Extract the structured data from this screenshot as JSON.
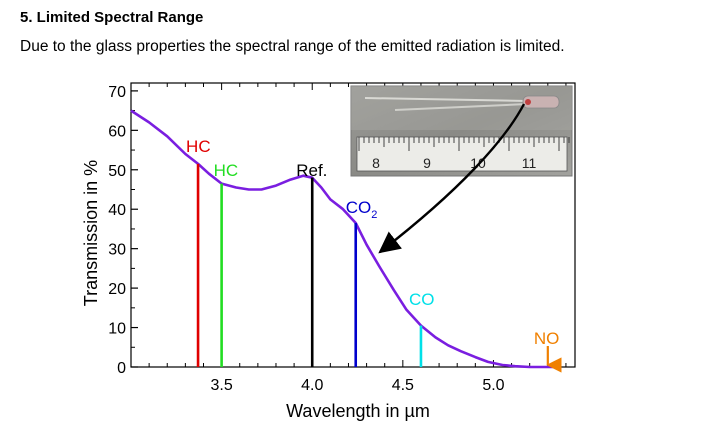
{
  "section": {
    "title": "5. Limited Spectral Range",
    "description": "Due to the glass properties the spectral range of the emitted radiation is limited."
  },
  "chart_data": {
    "type": "line",
    "title": "",
    "xlabel": "Wavelength in µm",
    "ylabel": "Transmission in %",
    "xlim": [
      3.0,
      5.45
    ],
    "ylim": [
      0,
      72
    ],
    "xticks": [
      3.5,
      4.0,
      4.5,
      5.0
    ],
    "yticks": [
      0,
      10,
      20,
      30,
      40,
      50,
      60,
      70
    ],
    "series": [
      {
        "color": "#7a1ee0",
        "x": [
          3.0,
          3.1,
          3.2,
          3.3,
          3.37,
          3.43,
          3.5,
          3.58,
          3.65,
          3.72,
          3.8,
          3.88,
          3.95,
          4.0,
          4.05,
          4.1,
          4.17,
          4.24,
          4.3,
          4.37,
          4.45,
          4.52,
          4.6,
          4.68,
          4.75,
          4.82,
          4.9,
          4.97,
          5.05,
          5.12,
          5.2,
          5.28,
          5.33
        ],
        "y": [
          65,
          62,
          58.5,
          54,
          51.5,
          49,
          46.5,
          45.5,
          45,
          45,
          46,
          47.5,
          48.5,
          48,
          45.5,
          42.5,
          40,
          36.5,
          31,
          25.5,
          19.5,
          14.5,
          10.5,
          7.5,
          5.5,
          4,
          2.5,
          1.3,
          0.5,
          0.2,
          0,
          0,
          0
        ]
      }
    ],
    "markers": [
      {
        "label": "HC",
        "x": 3.37,
        "y": 51.5,
        "color": "#e00000"
      },
      {
        "label": "HC",
        "x": 3.5,
        "y": 46.5,
        "color": "#22dd22"
      },
      {
        "label": "Ref.",
        "x": 4.0,
        "y": 48,
        "color": "#000000"
      },
      {
        "label": "CO2",
        "x": 4.24,
        "y": 36.5,
        "color": "#0000cc"
      },
      {
        "label": "CO",
        "x": 4.6,
        "y": 10.5,
        "color": "#00e0e8"
      },
      {
        "label": "NO",
        "x": 5.3,
        "y": 0,
        "color": "#f08000"
      }
    ],
    "grid": false,
    "inset_photo": {
      "ruler_labels": [
        "8",
        "9",
        "10",
        "11"
      ]
    }
  }
}
